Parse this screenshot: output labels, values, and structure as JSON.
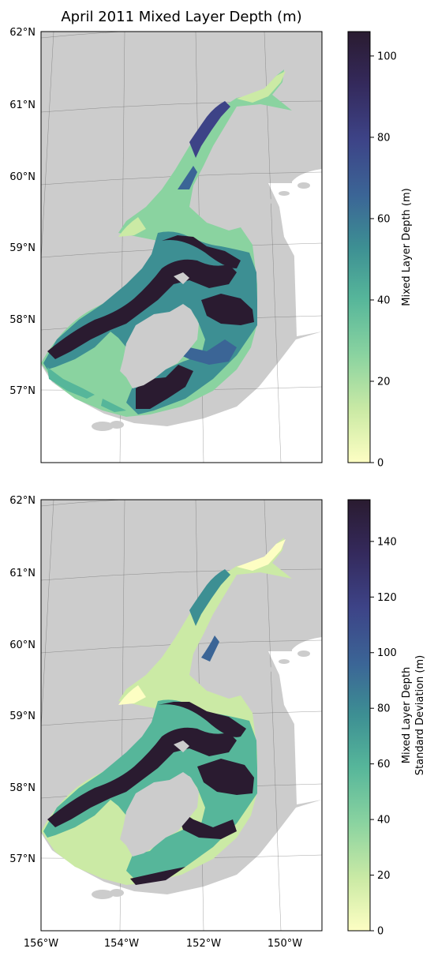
{
  "title": "April 2011 Mixed Layer Depth (m)",
  "panels": [
    {
      "id": "top",
      "colorbar_label_lines": [
        "Mixed Layer Depth (m)"
      ],
      "colorbar_ticks": [
        "0",
        "20",
        "40",
        "60",
        "80",
        "100"
      ],
      "colorbar_range": [
        0,
        106
      ]
    },
    {
      "id": "bottom",
      "colorbar_label_lines": [
        "Mixed Layer Depth",
        "Standard Deviation (m)"
      ],
      "colorbar_ticks": [
        "0",
        "20",
        "40",
        "60",
        "80",
        "100",
        "120",
        "140"
      ],
      "colorbar_range": [
        0,
        155
      ]
    }
  ],
  "lat_labels": [
    "62°N",
    "61°N",
    "60°N",
    "59°N",
    "58°N",
    "57°N"
  ],
  "lon_labels": [
    "156°W",
    "154°W",
    "152°W",
    "150°W"
  ],
  "colors": {
    "land": "#cccccc",
    "cmap": [
      "#fdfec3",
      "#cbeaa5",
      "#8ad3a0",
      "#56b69a",
      "#3d8f93",
      "#3b6596",
      "#3d4387",
      "#34295b",
      "#2a1b30"
    ]
  }
}
